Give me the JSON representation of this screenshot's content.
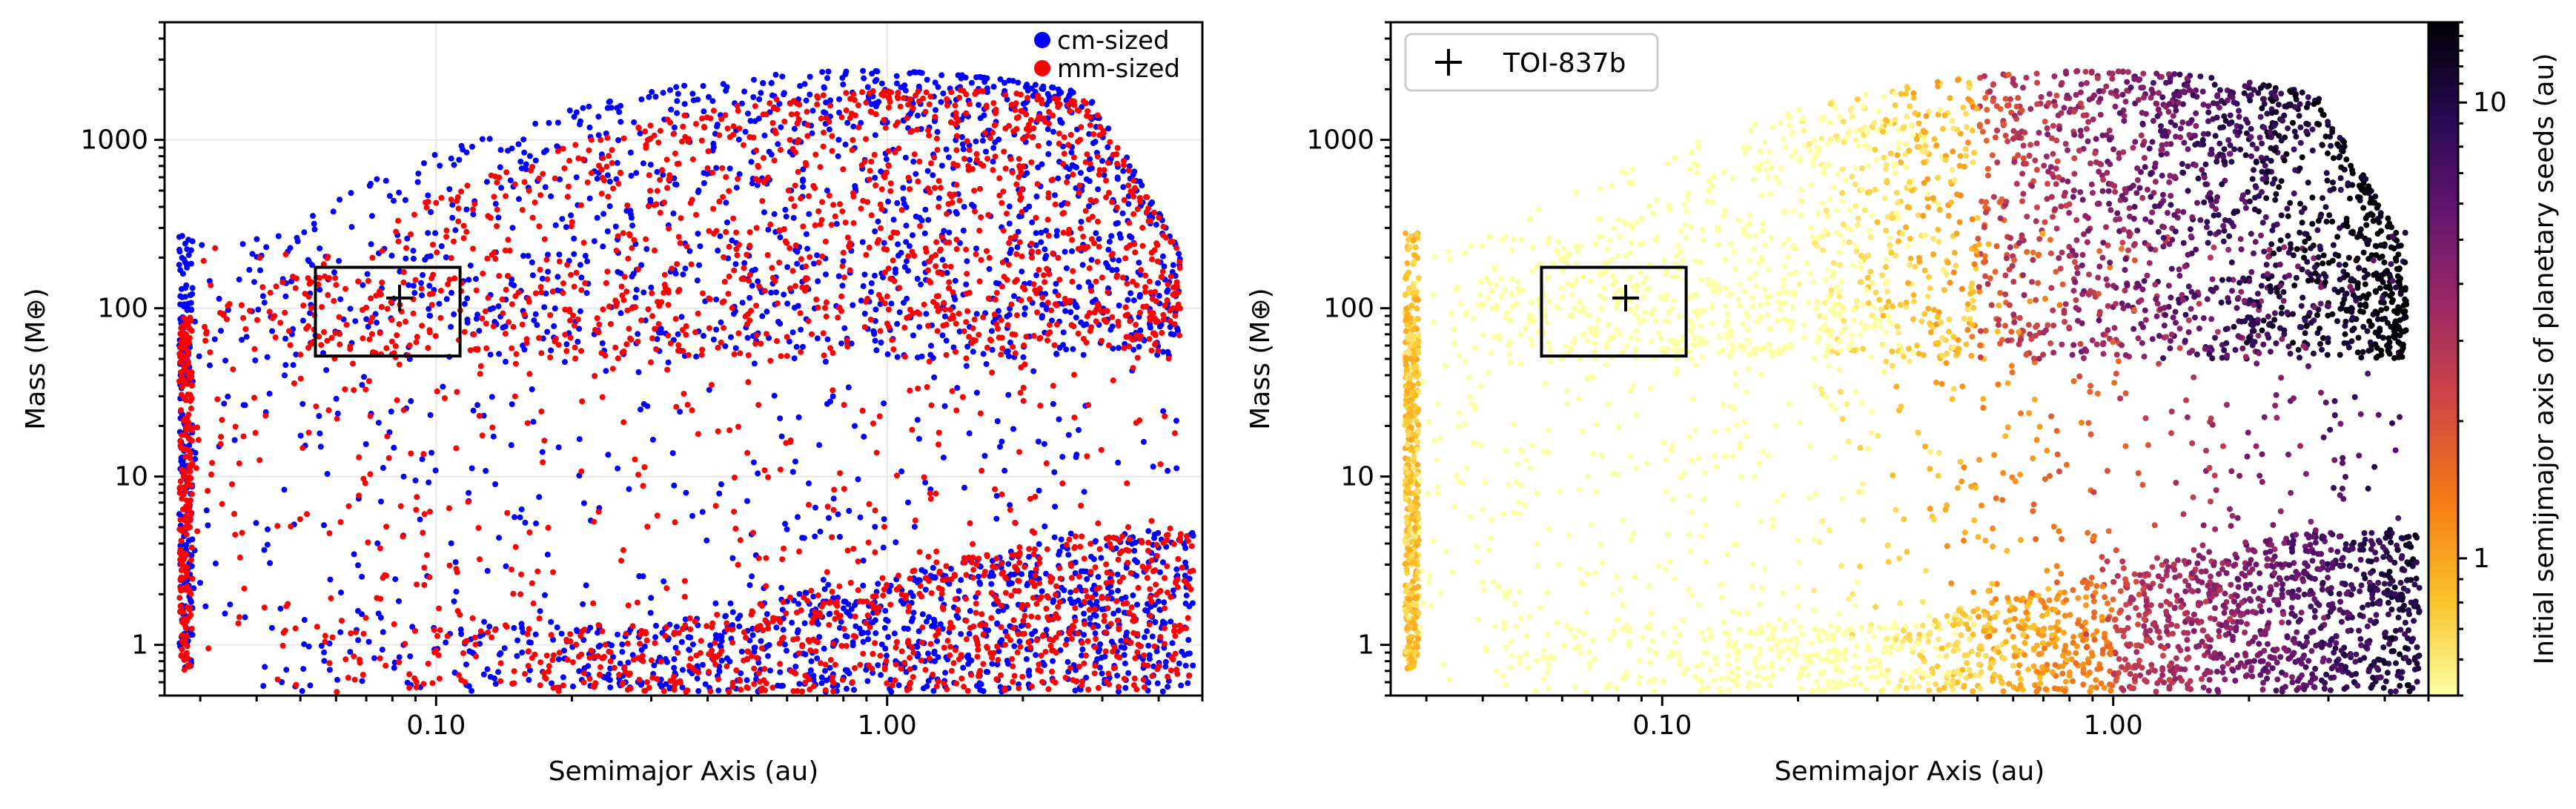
{
  "colors": {
    "cm": "#0000ff",
    "mm": "#ff0000",
    "colormap": [
      "#fcffa4",
      "#fac228",
      "#f57d15",
      "#d44842",
      "#9f2a63",
      "#65156e",
      "#280b53",
      "#000004"
    ]
  },
  "chart_data": [
    {
      "type": "scatter",
      "xlabel": "Semimajor Axis (au)",
      "ylabel": "Mass (M⊕)",
      "xscale": "log",
      "yscale": "log",
      "xlim": [
        0.025,
        5.0
      ],
      "ylim": [
        0.5,
        5000
      ],
      "xticks": [
        {
          "value": 0.1,
          "label": "0.10"
        },
        {
          "value": 1,
          "label": "1.00"
        }
      ],
      "yticks": [
        {
          "value": 1,
          "label": "1"
        },
        {
          "value": 10,
          "label": "10"
        },
        {
          "value": 100,
          "label": "100"
        },
        {
          "value": 1000,
          "label": "1000"
        }
      ],
      "grid": true,
      "legend_position": "top-right",
      "series": [
        {
          "name": "cm-sized",
          "color": "#0000ff",
          "envelope": {
            "inner_edge_a": 0.027,
            "gas_giant_max_mass": 2600,
            "peak_a": 0.9,
            "low_mass_max": 9
          }
        },
        {
          "name": "mm-sized",
          "color": "#ff0000",
          "envelope": {
            "inner_edge_a": 0.027,
            "gas_giant_max_mass": 2000,
            "peak_a": 1.2,
            "low_mass_max": 9
          }
        }
      ],
      "annotations": [
        {
          "type": "marker",
          "label": "TOI-837b",
          "x": 0.083,
          "y": 115
        },
        {
          "type": "box",
          "x_range": [
            0.054,
            0.113
          ],
          "y_range": [
            52,
            175
          ]
        }
      ]
    },
    {
      "type": "scatter",
      "xlabel": "Semimajor Axis (au)",
      "ylabel": "Mass (M⊕)",
      "xscale": "log",
      "yscale": "log",
      "xlim": [
        0.025,
        5.0
      ],
      "ylim": [
        0.5,
        5000
      ],
      "xticks": [
        {
          "value": 0.1,
          "label": "0.10"
        },
        {
          "value": 1,
          "label": "1.00"
        }
      ],
      "yticks": [
        {
          "value": 1,
          "label": "1"
        },
        {
          "value": 10,
          "label": "10"
        },
        {
          "value": 100,
          "label": "100"
        },
        {
          "value": 1000,
          "label": "1000"
        }
      ],
      "grid": false,
      "legend_position": "top-left",
      "legend": [
        {
          "marker": "+",
          "label": "TOI-837b"
        }
      ],
      "colorbar": {
        "label": "Initial semijmajor axis of planetary seeds (au)",
        "scale": "log",
        "range": [
          0.5,
          15
        ],
        "ticks": [
          {
            "value": 1,
            "label": "1"
          },
          {
            "value": 10,
            "label": "10"
          }
        ]
      },
      "annotations": [
        {
          "type": "marker",
          "label": "TOI-837b",
          "x": 0.083,
          "y": 115
        },
        {
          "type": "box",
          "x_range": [
            0.054,
            0.113
          ],
          "y_range": [
            52,
            175
          ]
        }
      ]
    }
  ]
}
